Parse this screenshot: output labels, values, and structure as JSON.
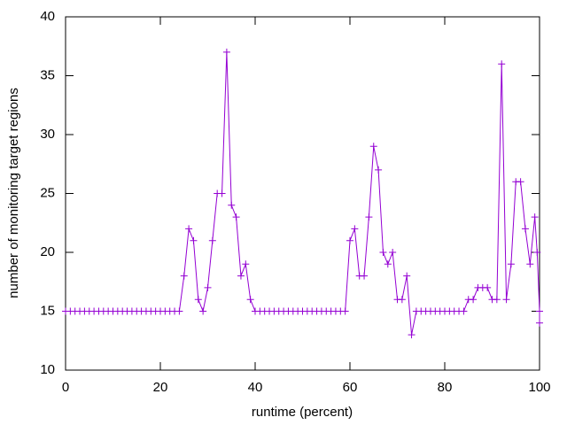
{
  "chart_data": {
    "type": "line",
    "xlabel": "runtime (percent)",
    "ylabel": "number of monitoring target regions",
    "xlim": [
      0,
      100
    ],
    "ylim": [
      10,
      40
    ],
    "xticks": [
      0,
      20,
      40,
      60,
      80,
      100
    ],
    "yticks": [
      10,
      15,
      20,
      25,
      30,
      35,
      40
    ],
    "grid": false,
    "series": [
      {
        "name": null,
        "color": "#9400d3",
        "x": [
          0,
          1,
          2,
          3,
          4,
          5,
          6,
          7,
          8,
          9,
          10,
          11,
          12,
          13,
          14,
          15,
          16,
          17,
          18,
          19,
          20,
          21,
          22,
          23,
          24,
          25,
          26,
          27,
          28,
          29,
          30,
          31,
          32,
          33,
          34,
          35,
          36,
          37,
          38,
          39,
          40,
          41,
          42,
          43,
          44,
          45,
          46,
          47,
          48,
          49,
          50,
          51,
          52,
          53,
          54,
          55,
          56,
          57,
          58,
          59,
          60,
          61,
          62,
          63,
          64,
          65,
          66,
          67,
          68,
          69,
          70,
          71,
          72,
          73,
          74,
          75,
          76,
          77,
          78,
          79,
          80,
          81,
          82,
          83,
          84,
          85,
          86,
          87,
          88,
          89,
          90,
          91,
          92,
          93,
          94,
          95,
          96,
          97,
          98,
          99,
          99.5,
          100,
          100
        ],
        "values": [
          15,
          15,
          15,
          15,
          15,
          15,
          15,
          15,
          15,
          15,
          15,
          15,
          15,
          15,
          15,
          15,
          15,
          15,
          15,
          15,
          15,
          15,
          15,
          15,
          15,
          18,
          22,
          21,
          16,
          15,
          17,
          21,
          25,
          25,
          37,
          24,
          23,
          18,
          19,
          16,
          15,
          15,
          15,
          15,
          15,
          15,
          15,
          15,
          15,
          15,
          15,
          15,
          15,
          15,
          15,
          15,
          15,
          15,
          15,
          15,
          21,
          22,
          18,
          18,
          23,
          29,
          27,
          20,
          19,
          20,
          16,
          16,
          18,
          13,
          15,
          15,
          15,
          15,
          15,
          15,
          15,
          15,
          15,
          15,
          15,
          16,
          16,
          17,
          17,
          17,
          16,
          16,
          36,
          16,
          19,
          26,
          26,
          22,
          19,
          23,
          20,
          15,
          14
        ]
      }
    ]
  }
}
